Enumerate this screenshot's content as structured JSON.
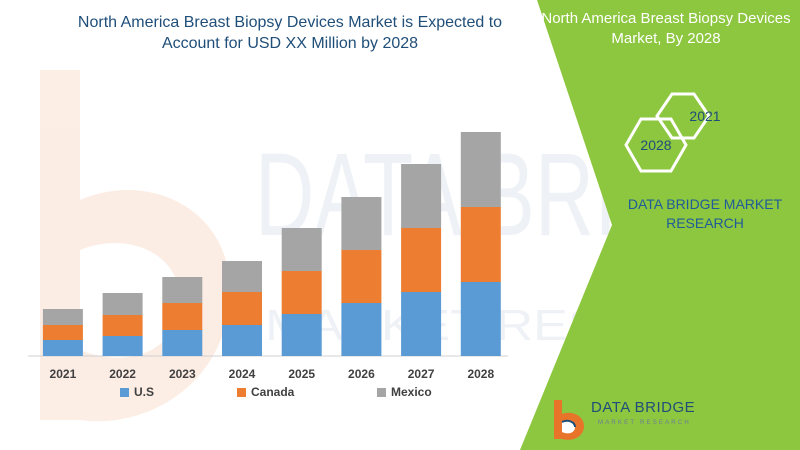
{
  "header": {
    "chart_title_line1": "North America Breast Biopsy Devices Market is Expected to",
    "chart_title_line2": "Account for USD XX Million by 2028"
  },
  "panel": {
    "title_line1": "North America Breast Biopsy Devices",
    "title_line2": "Market, By 2028",
    "hex_top": "2021",
    "hex_bottom": "2028",
    "brand_line1": "DATA BRIDGE MARKET",
    "brand_line2": "RESEARCH",
    "accent_color": "#8dc63f"
  },
  "logo": {
    "name": "DATA BRIDGE",
    "tagline": "MARKET RESEARCH",
    "watermark_line1": "DATA BRIDGE",
    "watermark_line2": "MARKET RESEARCH"
  },
  "chart_data": {
    "type": "bar",
    "stacked": true,
    "categories": [
      "2021",
      "2022",
      "2023",
      "2024",
      "2025",
      "2026",
      "2027",
      "2028"
    ],
    "series": [
      {
        "name": "U.S",
        "color": "#5b9bd5",
        "values": [
          16,
          20,
          26,
          31,
          42,
          53,
          64,
          74
        ]
      },
      {
        "name": "Canada",
        "color": "#ed7d31",
        "values": [
          15,
          21,
          27,
          33,
          43,
          53,
          64,
          75
        ]
      },
      {
        "name": "Mexico",
        "color": "#a5a5a5",
        "values": [
          16,
          22,
          26,
          31,
          43,
          53,
          64,
          75
        ]
      }
    ],
    "ylim": [
      0,
      230
    ],
    "grid": false,
    "legend": "bottom",
    "xlabel": "",
    "ylabel": ""
  }
}
